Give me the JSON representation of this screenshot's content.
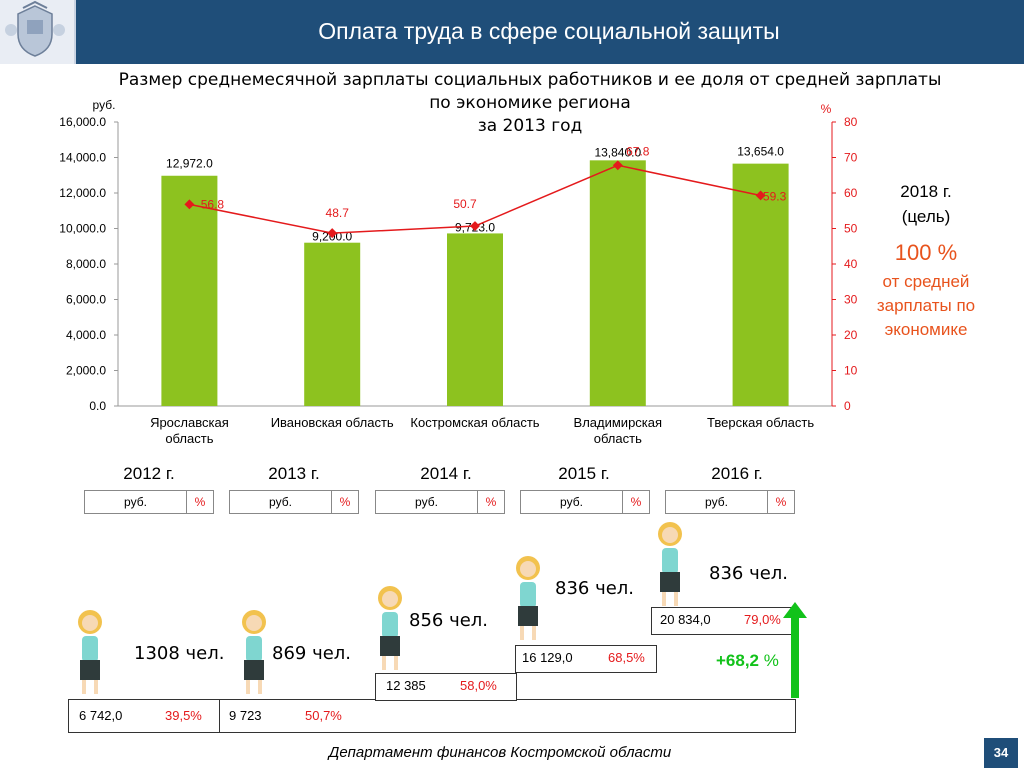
{
  "header": {
    "title": "Оплата труда в сфере социальной защиты"
  },
  "subtitle": {
    "line1": "Размер среднемесячной зарплаты социальных работников и ее доля от средней зарплаты",
    "line2": "по экономике региона",
    "line3": "за 2013 год"
  },
  "colors": {
    "bar": "#8dc21f",
    "line": "#e41a1c",
    "header": "#1f4e79",
    "arrow": "#12c21a"
  },
  "chart_data": {
    "type": "bar",
    "categories": [
      "Ярославская область",
      "Ивановская область",
      "Костромская область",
      "Владимирская область",
      "Тверская область"
    ],
    "category_lines": [
      [
        "Ярославская",
        "область"
      ],
      [
        "Ивановская область"
      ],
      [
        "Костромская область"
      ],
      [
        "Владимирская",
        "область"
      ],
      [
        "Тверская область"
      ]
    ],
    "values": [
      12972.0,
      9200.0,
      9723.0,
      13840.0,
      13654.0
    ],
    "value_labels": [
      "12,972.0",
      "9,200.0",
      "9,723.0",
      "13,840.0",
      "13,654.0"
    ],
    "line_series": {
      "values": [
        56.8,
        48.7,
        50.7,
        67.8,
        59.3
      ],
      "labels": [
        "56.8",
        "48.7",
        "50.7",
        "67.8",
        "59.3"
      ]
    },
    "ylabel": "руб.",
    "y2label": "%",
    "ylim": [
      0,
      16000
    ],
    "y2lim": [
      0,
      80
    ],
    "yticks": [
      "0.0",
      "2,000.0",
      "4,000.0",
      "6,000.0",
      "8,000.0",
      "10,000.0",
      "12,000.0",
      "14,000.0",
      "16,000.0"
    ],
    "y2ticks": [
      "0",
      "10",
      "20",
      "30",
      "40",
      "50",
      "60",
      "70",
      "80"
    ],
    "grid": false
  },
  "goal": {
    "year": "2018 г.",
    "label": "(цель)",
    "percent": "100 %",
    "line1": "от средней",
    "line2": "зарплаты по",
    "line3": "экономике"
  },
  "years": [
    {
      "year": "2012 г.",
      "rub": "руб.",
      "pct": "%"
    },
    {
      "year": "2013 г.",
      "rub": "руб.",
      "pct": "%"
    },
    {
      "year": "2014 г.",
      "rub": "руб.",
      "pct": "%"
    },
    {
      "year": "2015 г.",
      "rub": "руб.",
      "pct": "%"
    },
    {
      "year": "2016 г.",
      "rub": "руб.",
      "pct": "%"
    }
  ],
  "steps": [
    {
      "value": "6 742,0",
      "percent": "39,5%",
      "people": "1308 чел."
    },
    {
      "value": "9 723",
      "percent": "50,7%",
      "people": "869 чел."
    },
    {
      "value": "12 385",
      "percent": "58,0%",
      "people": "856 чел."
    },
    {
      "value": "16 129,0",
      "percent": "68,5%",
      "people": "836 чел."
    },
    {
      "value": "20 834,0",
      "percent": "79,0%",
      "people": "836 чел."
    }
  ],
  "growth": {
    "value": "+68,2",
    "unit": "%"
  },
  "footer": {
    "text": "Департамент финансов  Костромской области",
    "page": "34"
  }
}
